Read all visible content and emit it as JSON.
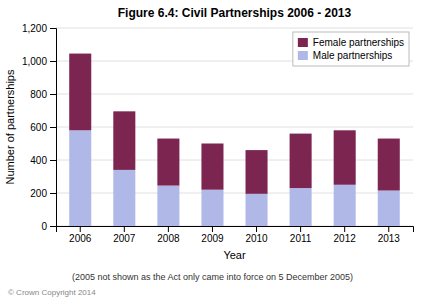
{
  "chart_data": {
    "type": "bar",
    "title": "Figure 6.4: Civil Partnerships 2006 - 2013",
    "xlabel": "Year",
    "ylabel": "Number of partnerships",
    "annotations": [
      "(2005 not shown as the Act only came into force on 5 December 2005)",
      "© Crown Copyright 2014"
    ],
    "categories": [
      "2006",
      "2007",
      "2008",
      "2009",
      "2010",
      "2011",
      "2012",
      "2013"
    ],
    "series": [
      {
        "name": "Male partnerships",
        "color": "#b0b8e8",
        "values": [
          580,
          340,
          245,
          220,
          195,
          230,
          250,
          215
        ]
      },
      {
        "name": "Female partnerships",
        "color": "#7b2550",
        "values": [
          465,
          355,
          285,
          280,
          265,
          330,
          330,
          315
        ]
      }
    ],
    "stacked": true,
    "ylim": [
      0,
      1200
    ],
    "yticks": [
      0,
      200,
      400,
      600,
      800,
      {
        "value": 1000,
        "label": "1,000"
      },
      {
        "value": 1200,
        "label": "1,200"
      }
    ],
    "grid": true,
    "legend": "upper right"
  }
}
